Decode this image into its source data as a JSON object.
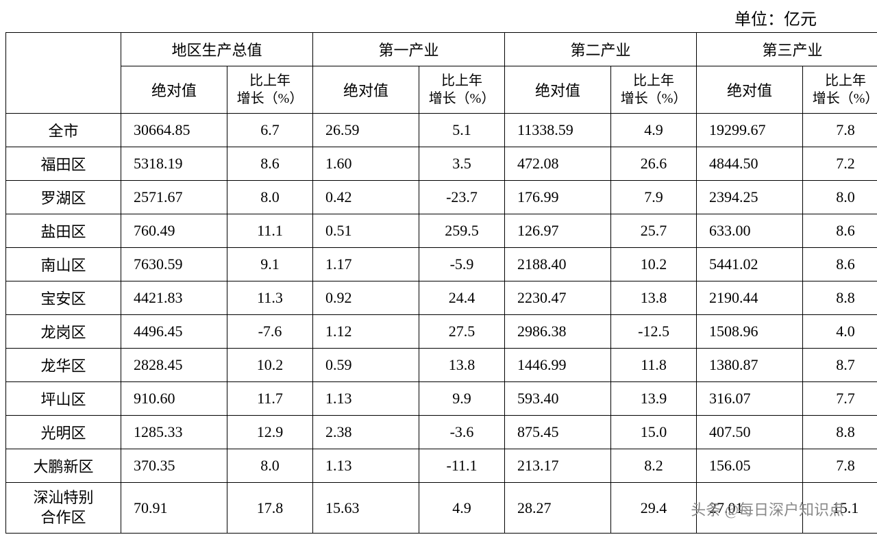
{
  "unit_label": "单位：亿元",
  "watermark": "头条 @每日深户知识点",
  "table": {
    "corner_blank": "",
    "header_groups": [
      {
        "label": "地区生产总值"
      },
      {
        "label": "第一产业"
      },
      {
        "label": "第二产业"
      },
      {
        "label": "第三产业"
      }
    ],
    "subheaders": {
      "absolute": "绝对值",
      "growth": "比上年\n增长（%）"
    },
    "rows": [
      {
        "region": "全市",
        "gdp_abs": "30664.85",
        "gdp_pct": "6.7",
        "p1_abs": "26.59",
        "p1_pct": "5.1",
        "p2_abs": "11338.59",
        "p2_pct": "4.9",
        "p3_abs": "19299.67",
        "p3_pct": "7.8"
      },
      {
        "region": "福田区",
        "gdp_abs": "5318.19",
        "gdp_pct": "8.6",
        "p1_abs": "1.60",
        "p1_pct": "3.5",
        "p2_abs": "472.08",
        "p2_pct": "26.6",
        "p3_abs": "4844.50",
        "p3_pct": "7.2"
      },
      {
        "region": "罗湖区",
        "gdp_abs": "2571.67",
        "gdp_pct": "8.0",
        "p1_abs": "0.42",
        "p1_pct": "-23.7",
        "p2_abs": "176.99",
        "p2_pct": "7.9",
        "p3_abs": "2394.25",
        "p3_pct": "8.0"
      },
      {
        "region": "盐田区",
        "gdp_abs": "760.49",
        "gdp_pct": "11.1",
        "p1_abs": "0.51",
        "p1_pct": "259.5",
        "p2_abs": "126.97",
        "p2_pct": "25.7",
        "p3_abs": "633.00",
        "p3_pct": "8.6"
      },
      {
        "region": "南山区",
        "gdp_abs": "7630.59",
        "gdp_pct": "9.1",
        "p1_abs": "1.17",
        "p1_pct": "-5.9",
        "p2_abs": "2188.40",
        "p2_pct": "10.2",
        "p3_abs": "5441.02",
        "p3_pct": "8.6"
      },
      {
        "region": "宝安区",
        "gdp_abs": "4421.83",
        "gdp_pct": "11.3",
        "p1_abs": "0.92",
        "p1_pct": "24.4",
        "p2_abs": "2230.47",
        "p2_pct": "13.8",
        "p3_abs": "2190.44",
        "p3_pct": "8.8"
      },
      {
        "region": "龙岗区",
        "gdp_abs": "4496.45",
        "gdp_pct": "-7.6",
        "p1_abs": "1.12",
        "p1_pct": "27.5",
        "p2_abs": "2986.38",
        "p2_pct": "-12.5",
        "p3_abs": "1508.96",
        "p3_pct": "4.0"
      },
      {
        "region": "龙华区",
        "gdp_abs": "2828.45",
        "gdp_pct": "10.2",
        "p1_abs": "0.59",
        "p1_pct": "13.8",
        "p2_abs": "1446.99",
        "p2_pct": "11.8",
        "p3_abs": "1380.87",
        "p3_pct": "8.7"
      },
      {
        "region": "坪山区",
        "gdp_abs": "910.60",
        "gdp_pct": "11.7",
        "p1_abs": "1.13",
        "p1_pct": "9.9",
        "p2_abs": "593.40",
        "p2_pct": "13.9",
        "p3_abs": "316.07",
        "p3_pct": "7.7"
      },
      {
        "region": "光明区",
        "gdp_abs": "1285.33",
        "gdp_pct": "12.9",
        "p1_abs": "2.38",
        "p1_pct": "-3.6",
        "p2_abs": "875.45",
        "p2_pct": "15.0",
        "p3_abs": "407.50",
        "p3_pct": "8.8"
      },
      {
        "region": "大鹏新区",
        "gdp_abs": "370.35",
        "gdp_pct": "8.0",
        "p1_abs": "1.13",
        "p1_pct": "-11.1",
        "p2_abs": "213.17",
        "p2_pct": "8.2",
        "p3_abs": "156.05",
        "p3_pct": "7.8"
      },
      {
        "region": "深汕特别\n合作区",
        "gdp_abs": "70.91",
        "gdp_pct": "17.8",
        "p1_abs": "15.63",
        "p1_pct": "4.9",
        "p2_abs": "28.27",
        "p2_pct": "29.4",
        "p3_abs": "27.01",
        "p3_pct": "15.1"
      }
    ]
  },
  "style": {
    "font_family": "SimSun",
    "font_size_header": 22,
    "font_size_cell": 22,
    "border_color": "#000000",
    "background_color": "#ffffff",
    "text_color": "#000000",
    "column_widths": {
      "region": 168,
      "abs": 155,
      "pct": 125
    }
  }
}
